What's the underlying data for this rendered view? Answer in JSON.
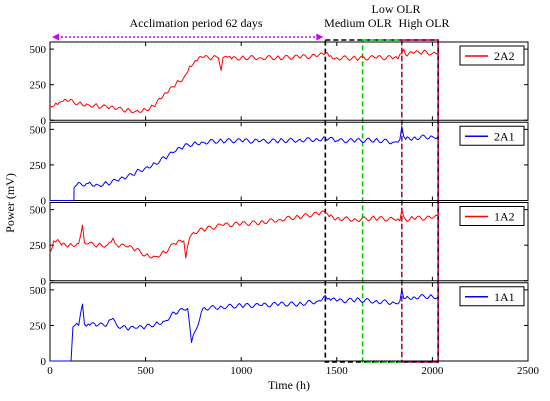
{
  "chart_data": {
    "type": "line",
    "xlabel": "Time (h)",
    "ylabel": "Power (mV)",
    "xlim": [
      0,
      2500
    ],
    "ylim": [
      0,
      550
    ],
    "xticks": [
      "0",
      "500",
      "1000",
      "1500",
      "2000",
      "2500"
    ],
    "yticks": [
      "0",
      "250",
      "500"
    ],
    "grid": false,
    "legend_position": "top-right of each panel",
    "annotations": {
      "acclimation": {
        "label": "Acclimation period 62 days",
        "start": 0,
        "end": 1440
      },
      "medium_olr": {
        "label": "Medium OLR",
        "start": 1440,
        "end": 2030,
        "color": "#000000"
      },
      "low_olr": {
        "label": "Low OLR",
        "start": 1635,
        "end": 1840,
        "color": "#00cc00"
      },
      "high_olr": {
        "label": "High OLR",
        "start": 1840,
        "end": 2030,
        "color": "#cc0066"
      }
    },
    "arrow_color": "#cc00ff",
    "panels": [
      {
        "series": [
          {
            "name": "2A2",
            "color": "#ff0000",
            "x": [
              0,
              30,
              60,
              100,
              150,
              200,
              250,
              300,
              350,
              400,
              450,
              500,
              540,
              580,
              620,
              660,
              700,
              730,
              760,
              800,
              850,
              880,
              895,
              905,
              920,
              950,
              1000,
              1100,
              1200,
              1300,
              1400,
              1440,
              1460,
              1500,
              1600,
              1700,
              1800,
              1820,
              1840,
              1850,
              1860,
              1900,
              1950,
              2000,
              2030
            ],
            "y": [
              100,
              120,
              130,
              135,
              120,
              110,
              100,
              90,
              80,
              70,
              65,
              75,
              100,
              150,
              200,
              260,
              300,
              380,
              420,
              440,
              440,
              440,
              350,
              440,
              450,
              430,
              440,
              440,
              440,
              445,
              450,
              470,
              450,
              440,
              435,
              440,
              440,
              430,
              470,
              500,
              460,
              470,
              480,
              470,
              475
            ]
          }
        ]
      },
      {
        "series": [
          {
            "name": "2A1",
            "color": "#0000ff",
            "x": [
              0,
              125,
              126,
              140,
              200,
              250,
              300,
              350,
              400,
              450,
              500,
              550,
              600,
              650,
              700,
              750,
              800,
              900,
              1000,
              1100,
              1200,
              1300,
              1400,
              1440,
              1500,
              1600,
              1700,
              1800,
              1830,
              1840,
              1850,
              1860,
              1900,
              2000,
              2030
            ],
            "y": [
              0,
              0,
              90,
              110,
              120,
              110,
              120,
              140,
              160,
              200,
              230,
              260,
              300,
              340,
              380,
              400,
              410,
              420,
              420,
              415,
              420,
              425,
              430,
              440,
              420,
              420,
              425,
              410,
              430,
              520,
              450,
              430,
              440,
              450,
              450
            ]
          }
        ]
      },
      {
        "series": [
          {
            "name": "1A2",
            "color": "#ff0000",
            "x": [
              0,
              20,
              40,
              60,
              100,
              150,
              170,
              180,
              200,
              250,
              300,
              330,
              350,
              400,
              450,
              500,
              550,
              600,
              650,
              700,
              710,
              730,
              750,
              800,
              900,
              1000,
              1100,
              1200,
              1300,
              1400,
              1440,
              1460,
              1500,
              1600,
              1700,
              1800,
              1830,
              1840,
              1850,
              1860,
              1900,
              2000,
              2030
            ],
            "y": [
              200,
              280,
              290,
              250,
              250,
              260,
              390,
              270,
              260,
              250,
              250,
              300,
              250,
              240,
              220,
              180,
              170,
              200,
              260,
              280,
              160,
              300,
              340,
              360,
              390,
              400,
              410,
              430,
              450,
              470,
              480,
              450,
              440,
              430,
              440,
              430,
              420,
              500,
              450,
              430,
              440,
              440,
              450
            ]
          }
        ]
      },
      {
        "series": [
          {
            "name": "1A1",
            "color": "#0000ff",
            "x": [
              0,
              110,
              120,
              130,
              150,
              170,
              180,
              200,
              250,
              300,
              330,
              350,
              400,
              450,
              500,
              550,
              600,
              650,
              700,
              720,
              740,
              800,
              900,
              1000,
              1100,
              1200,
              1300,
              1400,
              1440,
              1460,
              1500,
              1600,
              1700,
              1800,
              1830,
              1840,
              1850,
              1860,
              1900,
              2000,
              2030
            ],
            "y": [
              0,
              0,
              240,
              250,
              250,
              400,
              260,
              260,
              250,
              260,
              300,
              250,
              230,
              230,
              240,
              260,
              280,
              340,
              360,
              370,
              130,
              370,
              380,
              390,
              390,
              400,
              400,
              420,
              460,
              440,
              420,
              430,
              420,
              410,
              420,
              500,
              440,
              440,
              450,
              455,
              450
            ]
          }
        ]
      }
    ]
  }
}
